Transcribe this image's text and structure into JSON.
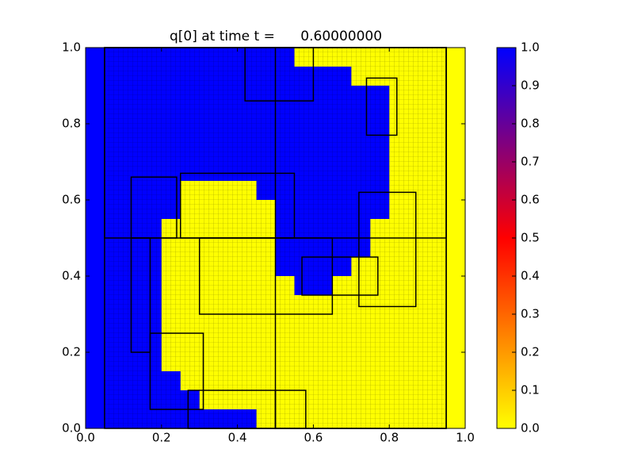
{
  "chart_data": {
    "type": "heatmap",
    "title": "q[0] at time t =      0.60000000",
    "xlim": [
      0,
      1
    ],
    "ylim": [
      0,
      1
    ],
    "xticks": [
      {
        "value": 0,
        "label": "0.0"
      },
      {
        "value": 0.2,
        "label": "0.2"
      },
      {
        "value": 0.4,
        "label": "0.4"
      },
      {
        "value": 0.6,
        "label": "0.6"
      },
      {
        "value": 0.8,
        "label": "0.8"
      },
      {
        "value": 1,
        "label": "1.0"
      }
    ],
    "yticks": [
      {
        "value": 0,
        "label": "0.0"
      },
      {
        "value": 0.2,
        "label": "0.2"
      },
      {
        "value": 0.4,
        "label": "0.4"
      },
      {
        "value": 0.6,
        "label": "0.6"
      },
      {
        "value": 0.8,
        "label": "0.8"
      },
      {
        "value": 1,
        "label": "1.0"
      }
    ],
    "colormap": [
      "#ffff00",
      "#ff0000",
      "#0000ff"
    ],
    "clim": [
      0,
      1
    ],
    "cticks": [
      {
        "value": 0,
        "label": "0.0"
      },
      {
        "value": 0.1,
        "label": "0.1"
      },
      {
        "value": 0.2,
        "label": "0.2"
      },
      {
        "value": 0.3,
        "label": "0.3"
      },
      {
        "value": 0.4,
        "label": "0.4"
      },
      {
        "value": 0.5,
        "label": "0.5"
      },
      {
        "value": 0.6,
        "label": "0.6"
      },
      {
        "value": 0.7,
        "label": "0.7"
      },
      {
        "value": 0.8,
        "label": "0.8"
      },
      {
        "value": 0.9,
        "label": "0.9"
      },
      {
        "value": 1,
        "label": "1.0"
      }
    ],
    "values": [
      [
        1,
        1,
        1,
        1,
        1,
        1,
        1,
        1,
        1,
        1,
        1,
        0,
        0,
        0,
        0,
        0,
        0,
        0,
        0,
        0
      ],
      [
        1,
        1,
        1,
        1,
        1,
        1,
        1,
        1,
        1,
        1,
        1,
        1,
        1,
        1,
        0,
        0,
        0,
        0,
        0,
        0
      ],
      [
        1,
        1,
        1,
        1,
        1,
        1,
        1,
        1,
        1,
        1,
        1,
        1,
        1,
        1,
        1,
        1,
        0,
        0,
        0,
        0
      ],
      [
        1,
        1,
        1,
        1,
        1,
        1,
        1,
        1,
        1,
        1,
        1,
        1,
        1,
        1,
        1,
        1,
        0,
        0,
        0,
        0
      ],
      [
        1,
        1,
        1,
        1,
        1,
        1,
        1,
        1,
        1,
        1,
        1,
        1,
        1,
        1,
        1,
        1,
        0,
        0,
        0,
        0
      ],
      [
        1,
        1,
        1,
        1,
        1,
        1,
        1,
        1,
        1,
        1,
        1,
        1,
        1,
        1,
        1,
        1,
        0,
        0,
        0,
        0
      ],
      [
        1,
        1,
        1,
        1,
        1,
        1,
        1,
        1,
        1,
        1,
        1,
        1,
        1,
        1,
        1,
        1,
        0,
        0,
        0,
        0
      ],
      [
        1,
        1,
        1,
        1,
        1,
        0,
        0,
        0,
        0,
        1,
        1,
        1,
        1,
        1,
        1,
        1,
        0,
        0,
        0,
        0
      ],
      [
        1,
        1,
        1,
        1,
        1,
        0,
        0,
        0,
        0,
        0,
        1,
        1,
        1,
        1,
        1,
        1,
        0,
        0,
        0,
        0
      ],
      [
        1,
        1,
        1,
        1,
        0,
        0,
        0,
        0,
        0,
        0,
        1,
        1,
        1,
        1,
        1,
        0,
        0,
        0,
        0,
        0
      ],
      [
        1,
        1,
        1,
        1,
        0,
        0,
        0,
        0,
        0,
        0,
        1,
        1,
        1,
        1,
        1,
        0,
        0,
        0,
        0,
        0
      ],
      [
        1,
        1,
        1,
        1,
        0,
        0,
        0,
        0,
        0,
        0,
        1,
        1,
        1,
        1,
        0,
        0,
        0,
        0,
        0,
        0
      ],
      [
        1,
        1,
        1,
        1,
        0,
        0,
        0,
        0,
        0,
        0,
        0,
        1,
        1,
        0,
        0,
        0,
        0,
        0,
        0,
        0
      ],
      [
        1,
        1,
        1,
        1,
        0,
        0,
        0,
        0,
        0,
        0,
        0,
        0,
        0,
        0,
        0,
        0,
        0,
        0,
        0,
        0
      ],
      [
        1,
        1,
        1,
        1,
        0,
        0,
        0,
        0,
        0,
        0,
        0,
        0,
        0,
        0,
        0,
        0,
        0,
        0,
        0,
        0
      ],
      [
        1,
        1,
        1,
        1,
        0,
        0,
        0,
        0,
        0,
        0,
        0,
        0,
        0,
        0,
        0,
        0,
        0,
        0,
        0,
        0
      ],
      [
        1,
        1,
        1,
        1,
        0,
        0,
        0,
        0,
        0,
        0,
        0,
        0,
        0,
        0,
        0,
        0,
        0,
        0,
        0,
        0
      ],
      [
        1,
        1,
        1,
        1,
        1,
        0,
        0,
        0,
        0,
        0,
        0,
        0,
        0,
        0,
        0,
        0,
        0,
        0,
        0,
        0
      ],
      [
        1,
        1,
        1,
        1,
        1,
        1,
        0,
        0,
        0,
        0,
        0,
        0,
        0,
        0,
        0,
        0,
        0,
        0,
        0,
        0
      ],
      [
        1,
        1,
        1,
        1,
        1,
        1,
        1,
        1,
        1,
        0,
        0,
        0,
        0,
        0,
        0,
        0,
        0,
        0,
        0,
        0
      ]
    ]
  }
}
